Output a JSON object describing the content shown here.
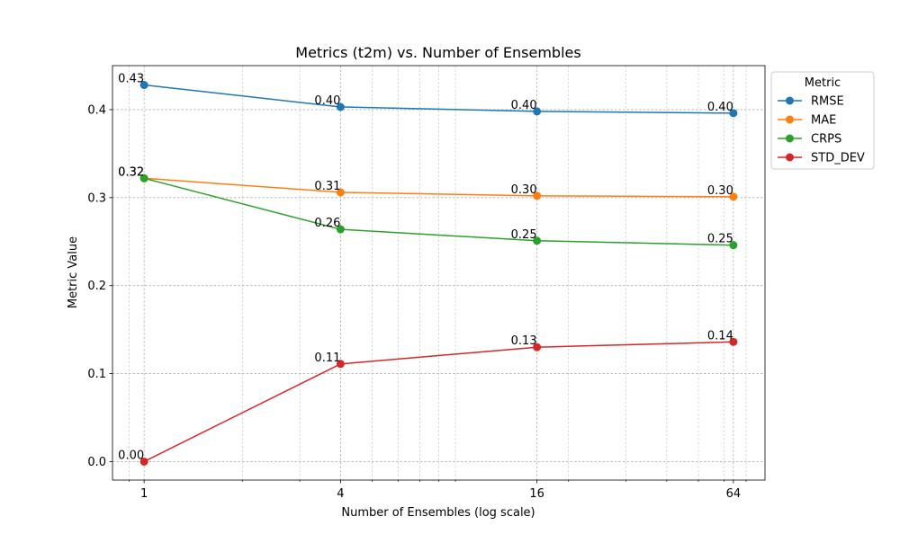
{
  "chart_data": {
    "type": "line",
    "title": "Metrics (t2m) vs. Number of Ensembles",
    "xlabel": "Number of Ensembles (log scale)",
    "ylabel": "Metric Value",
    "x_scale": "log",
    "x": [
      1,
      4,
      16,
      64
    ],
    "x_tick_labels": [
      "1",
      "4",
      "16",
      "64"
    ],
    "xlim": [
      0.8,
      80
    ],
    "ylim": [
      -0.021,
      0.45
    ],
    "y_ticks": [
      0.0,
      0.1,
      0.2,
      0.3,
      0.4
    ],
    "y_tick_labels": [
      "0.0",
      "0.1",
      "0.2",
      "0.3",
      "0.4"
    ],
    "grid": true,
    "legend": {
      "title": "Metric",
      "position": "outside-top-right"
    },
    "series": [
      {
        "name": "RMSE",
        "color": "#1f77b4",
        "values": [
          0.428,
          0.403,
          0.398,
          0.396
        ],
        "labels": [
          "0.43",
          "0.40",
          "0.40",
          "0.40"
        ]
      },
      {
        "name": "MAE",
        "color": "#ff7f0e",
        "values": [
          0.322,
          0.306,
          0.302,
          0.301
        ],
        "labels": [
          "0.32",
          "0.31",
          "0.30",
          "0.30"
        ]
      },
      {
        "name": "CRPS",
        "color": "#2ca02c",
        "values": [
          0.322,
          0.264,
          0.251,
          0.246
        ],
        "labels": [
          "0.32",
          "0.26",
          "0.25",
          "0.25"
        ]
      },
      {
        "name": "STD_DEV",
        "color": "#d62728",
        "values": [
          0.0,
          0.111,
          0.13,
          0.136
        ],
        "labels": [
          "0.00",
          "0.11",
          "0.13",
          "0.14"
        ]
      }
    ]
  }
}
